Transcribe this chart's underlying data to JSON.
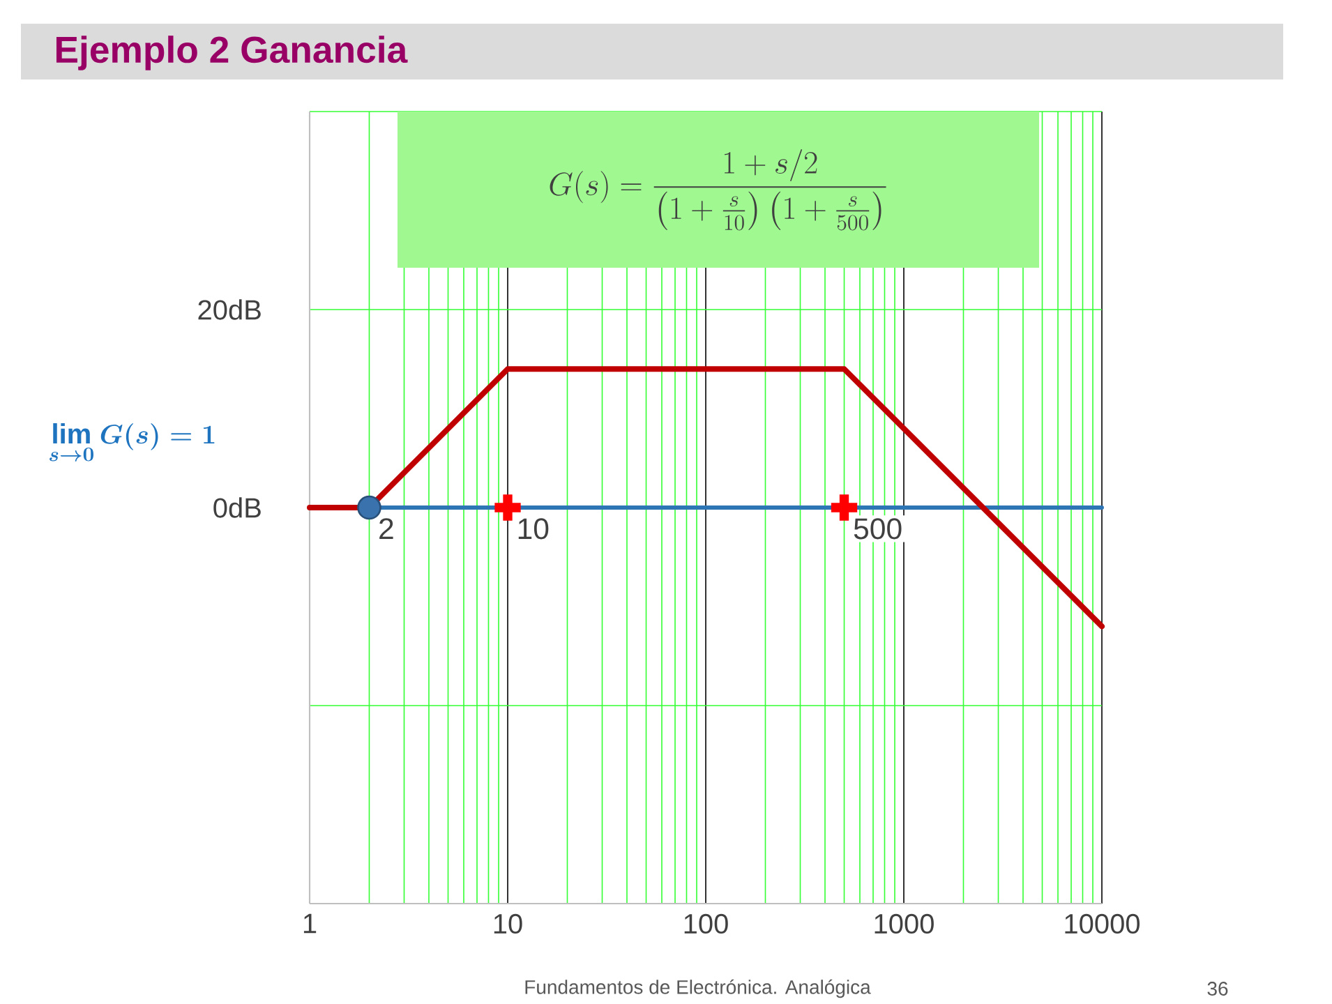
{
  "chart_data": {
    "type": "line",
    "title": "Ejemplo 2 Ganancia",
    "log": "x",
    "xlim": [
      1,
      10000
    ],
    "ylim": [
      -40,
      40
    ],
    "xticks": [
      1,
      10,
      100,
      1000,
      10000
    ],
    "yticks": [
      {
        "value": -40,
        "label": null
      },
      {
        "value": -20,
        "label": null
      },
      {
        "value": 0,
        "label": "0dB"
      },
      {
        "value": 20,
        "label": "20dB"
      },
      {
        "value": 40,
        "label": null
      }
    ],
    "grid": true,
    "series": [
      {
        "color": "#2e75b6",
        "x": [
          1,
          10000
        ],
        "values": [
          0,
          0
        ]
      },
      {
        "color": "#c00000",
        "x": [
          1,
          2,
          10,
          500,
          10000
        ],
        "values": [
          0,
          0,
          14,
          14,
          -12
        ]
      },
      {
        "type": "scatter",
        "color": "#3a72ad",
        "x": [
          2
        ],
        "values": [
          0
        ],
        "marker": "circle"
      },
      {
        "type": "scatter",
        "color": "#ff0000",
        "x": [
          10,
          500
        ],
        "values": [
          0,
          0
        ],
        "marker": "cross"
      }
    ],
    "annotations": [
      {
        "text": "2",
        "x": 2,
        "y": 0
      },
      {
        "text": "10",
        "x": 10,
        "y": 0
      },
      {
        "text": "500",
        "x": 500,
        "y": 0
      },
      "G(s)=\\frac{1+s/2}{\\left(1+\\frac{s}{10}\\right)\\left(1+\\frac{s}{500}\\right)}",
      "\\lim\\limits_{s\\to 0} G(s)=1",
      "Fundamentos de Electrónica. Analógica",
      "36"
    ]
  }
}
